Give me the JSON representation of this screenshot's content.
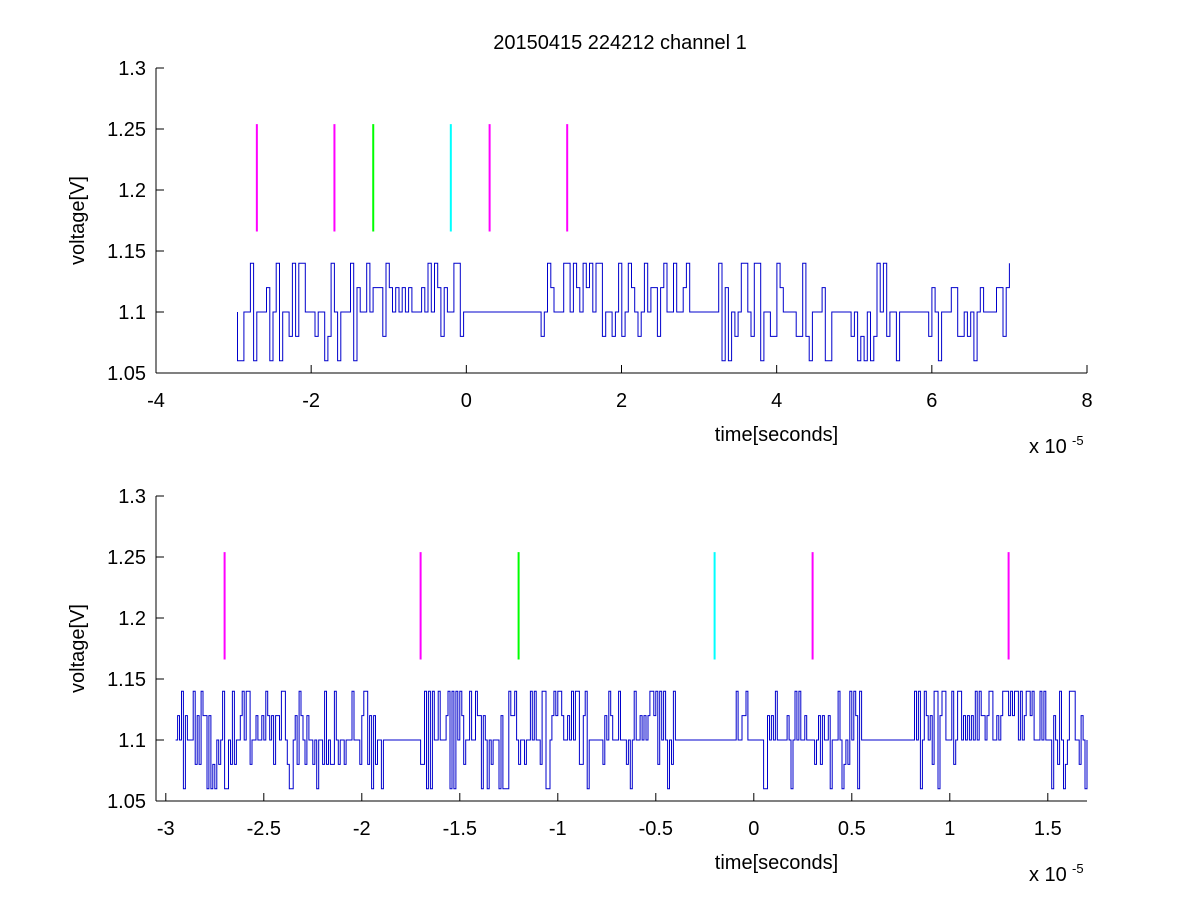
{
  "figure": {
    "title": "20150415 224212 channel 1"
  },
  "chart_data": [
    {
      "type": "line",
      "title": "20150415 224212 channel 1",
      "xlabel": "time[seconds]",
      "ylabel": "voltage[V]",
      "x_exponent_label": "x 10",
      "x_exponent": "-5",
      "xlim": [
        -4,
        8
      ],
      "ylim": [
        1.05,
        1.3
      ],
      "x_ticks": [
        -4,
        -2,
        0,
        2,
        4,
        6,
        8
      ],
      "x_tick_labels": [
        "-4",
        "-2",
        "0",
        "2",
        "4",
        "6",
        "8"
      ],
      "y_ticks": [
        1.05,
        1.1,
        1.15,
        1.2,
        1.25,
        1.3
      ],
      "y_tick_labels": [
        "1.05",
        "1.1",
        "1.15",
        "1.2",
        "1.25",
        "1.3"
      ],
      "grid": false,
      "series": [
        {
          "color": "#0000cc",
          "x_range": [
            -2.95,
            7.0
          ],
          "levels": [
            1.06,
            1.08,
            1.1,
            1.12,
            1.14
          ],
          "baseline": 1.1,
          "transitions_per_unit": 24,
          "quiet_intervals": [
            [
              -0.05,
              0.95
            ],
            [
              2.85,
              3.25
            ],
            [
              5.6,
              5.95
            ]
          ],
          "dense_intervals": [
            [
              -2.9,
              -1.8
            ],
            [
              3.65,
              5.2
            ]
          ]
        }
      ],
      "markers": [
        {
          "x": -2.7,
          "y": [
            1.166,
            1.254
          ],
          "color": "#ff00ff"
        },
        {
          "x": -1.7,
          "y": [
            1.166,
            1.254
          ],
          "color": "#ff00ff"
        },
        {
          "x": -1.2,
          "y": [
            1.166,
            1.254
          ],
          "color": "#00ff00"
        },
        {
          "x": -0.2,
          "y": [
            1.166,
            1.254
          ],
          "color": "#00ffff"
        },
        {
          "x": 0.3,
          "y": [
            1.166,
            1.254
          ],
          "color": "#ff00ff"
        },
        {
          "x": 1.3,
          "y": [
            1.166,
            1.254
          ],
          "color": "#ff00ff"
        }
      ]
    },
    {
      "type": "line",
      "title": "",
      "xlabel": "time[seconds]",
      "ylabel": "voltage[V]",
      "x_exponent_label": "x 10",
      "x_exponent": "-5",
      "xlim": [
        -3.05,
        1.7
      ],
      "ylim": [
        1.05,
        1.3
      ],
      "x_ticks": [
        -3,
        -2.5,
        -2,
        -1.5,
        -1,
        -0.5,
        0,
        0.5,
        1,
        1.5
      ],
      "x_tick_labels": [
        "-3",
        "-2.5",
        "-2",
        "-1.5",
        "-1",
        "-0.5",
        "0",
        "0.5",
        "1",
        "1.5"
      ],
      "y_ticks": [
        1.05,
        1.1,
        1.15,
        1.2,
        1.25,
        1.3
      ],
      "y_tick_labels": [
        "1.05",
        "1.1",
        "1.15",
        "1.2",
        "1.25",
        "1.3"
      ],
      "grid": false,
      "series": [
        {
          "color": "#0000cc",
          "x_range": [
            -2.95,
            1.7
          ],
          "levels": [
            1.06,
            1.08,
            1.1,
            1.12,
            1.14
          ],
          "baseline": 1.1,
          "transitions_per_unit": 100,
          "quiet_intervals": [
            [
              -1.9,
              -1.73
            ],
            [
              -0.85,
              -0.8
            ],
            [
              -0.4,
              -0.1
            ],
            [
              0.55,
              0.8
            ]
          ],
          "dense_intervals": [
            [
              -2.45,
              -1.95
            ],
            [
              -2.9,
              -2.65
            ]
          ]
        }
      ],
      "markers": [
        {
          "x": -2.7,
          "y": [
            1.166,
            1.254
          ],
          "color": "#ff00ff"
        },
        {
          "x": -1.7,
          "y": [
            1.166,
            1.254
          ],
          "color": "#ff00ff"
        },
        {
          "x": -1.2,
          "y": [
            1.166,
            1.254
          ],
          "color": "#00ff00"
        },
        {
          "x": -0.2,
          "y": [
            1.166,
            1.254
          ],
          "color": "#00ffff"
        },
        {
          "x": 0.3,
          "y": [
            1.166,
            1.254
          ],
          "color": "#ff00ff"
        },
        {
          "x": 1.3,
          "y": [
            1.166,
            1.254
          ],
          "color": "#ff00ff"
        }
      ]
    }
  ]
}
